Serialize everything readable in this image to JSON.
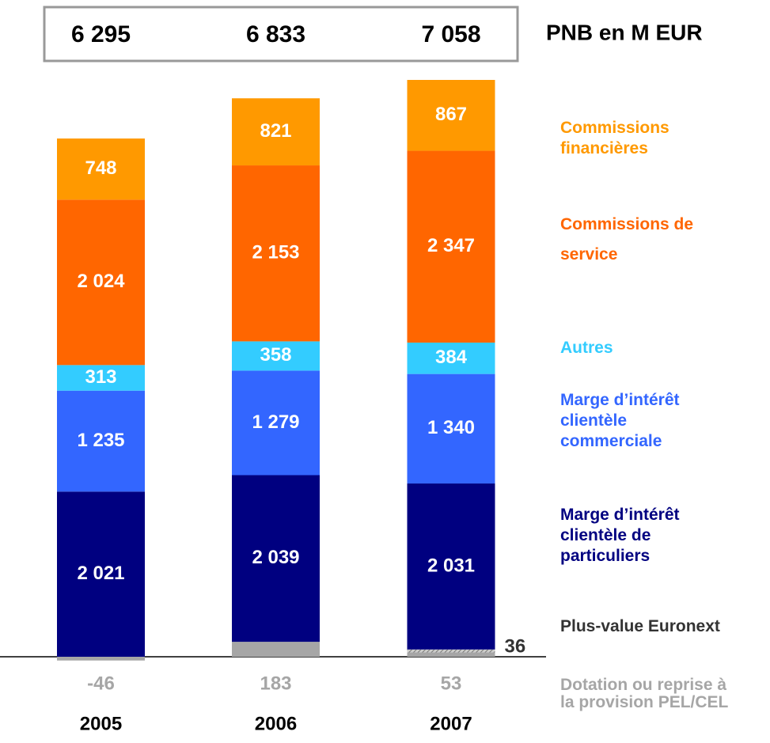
{
  "chart_data": {
    "type": "stacked_bar",
    "title": "PNB en M EUR",
    "categories": [
      "2005",
      "2006",
      "2007"
    ],
    "totals": [
      6295,
      6833,
      7058
    ],
    "total_labels": [
      "6 295",
      "6 833",
      "7 058"
    ],
    "series": [
      {
        "name": "Dotation ou reprise à la provision PEL/CEL",
        "color": "#a6a6a6",
        "values": [
          -46,
          183,
          53
        ]
      },
      {
        "name": "Plus-value Euronext",
        "color": "#333333",
        "values": [
          null,
          null,
          36
        ]
      },
      {
        "name": "Marge d’intérêt clientèle de particuliers",
        "color": "#000080",
        "values": [
          2021,
          2039,
          2031
        ],
        "value_labels": [
          "2 021",
          "2 039",
          "2 031"
        ]
      },
      {
        "name": "Marge d’intérêt clientèle commerciale",
        "color": "#3366ff",
        "values": [
          1235,
          1279,
          1340
        ],
        "value_labels": [
          "1 235",
          "1 279",
          "1 340"
        ]
      },
      {
        "name": "Autres",
        "color": "#33ccff",
        "values": [
          313,
          358,
          384
        ]
      },
      {
        "name": "Commissions de service",
        "color": "#ff6600",
        "values": [
          2024,
          2153,
          2347
        ],
        "value_labels": [
          "2 024",
          "2 153",
          "2 347"
        ]
      },
      {
        "name": "Commissions financières",
        "color": "#ff9900",
        "values": [
          748,
          821,
          867
        ]
      }
    ]
  }
}
